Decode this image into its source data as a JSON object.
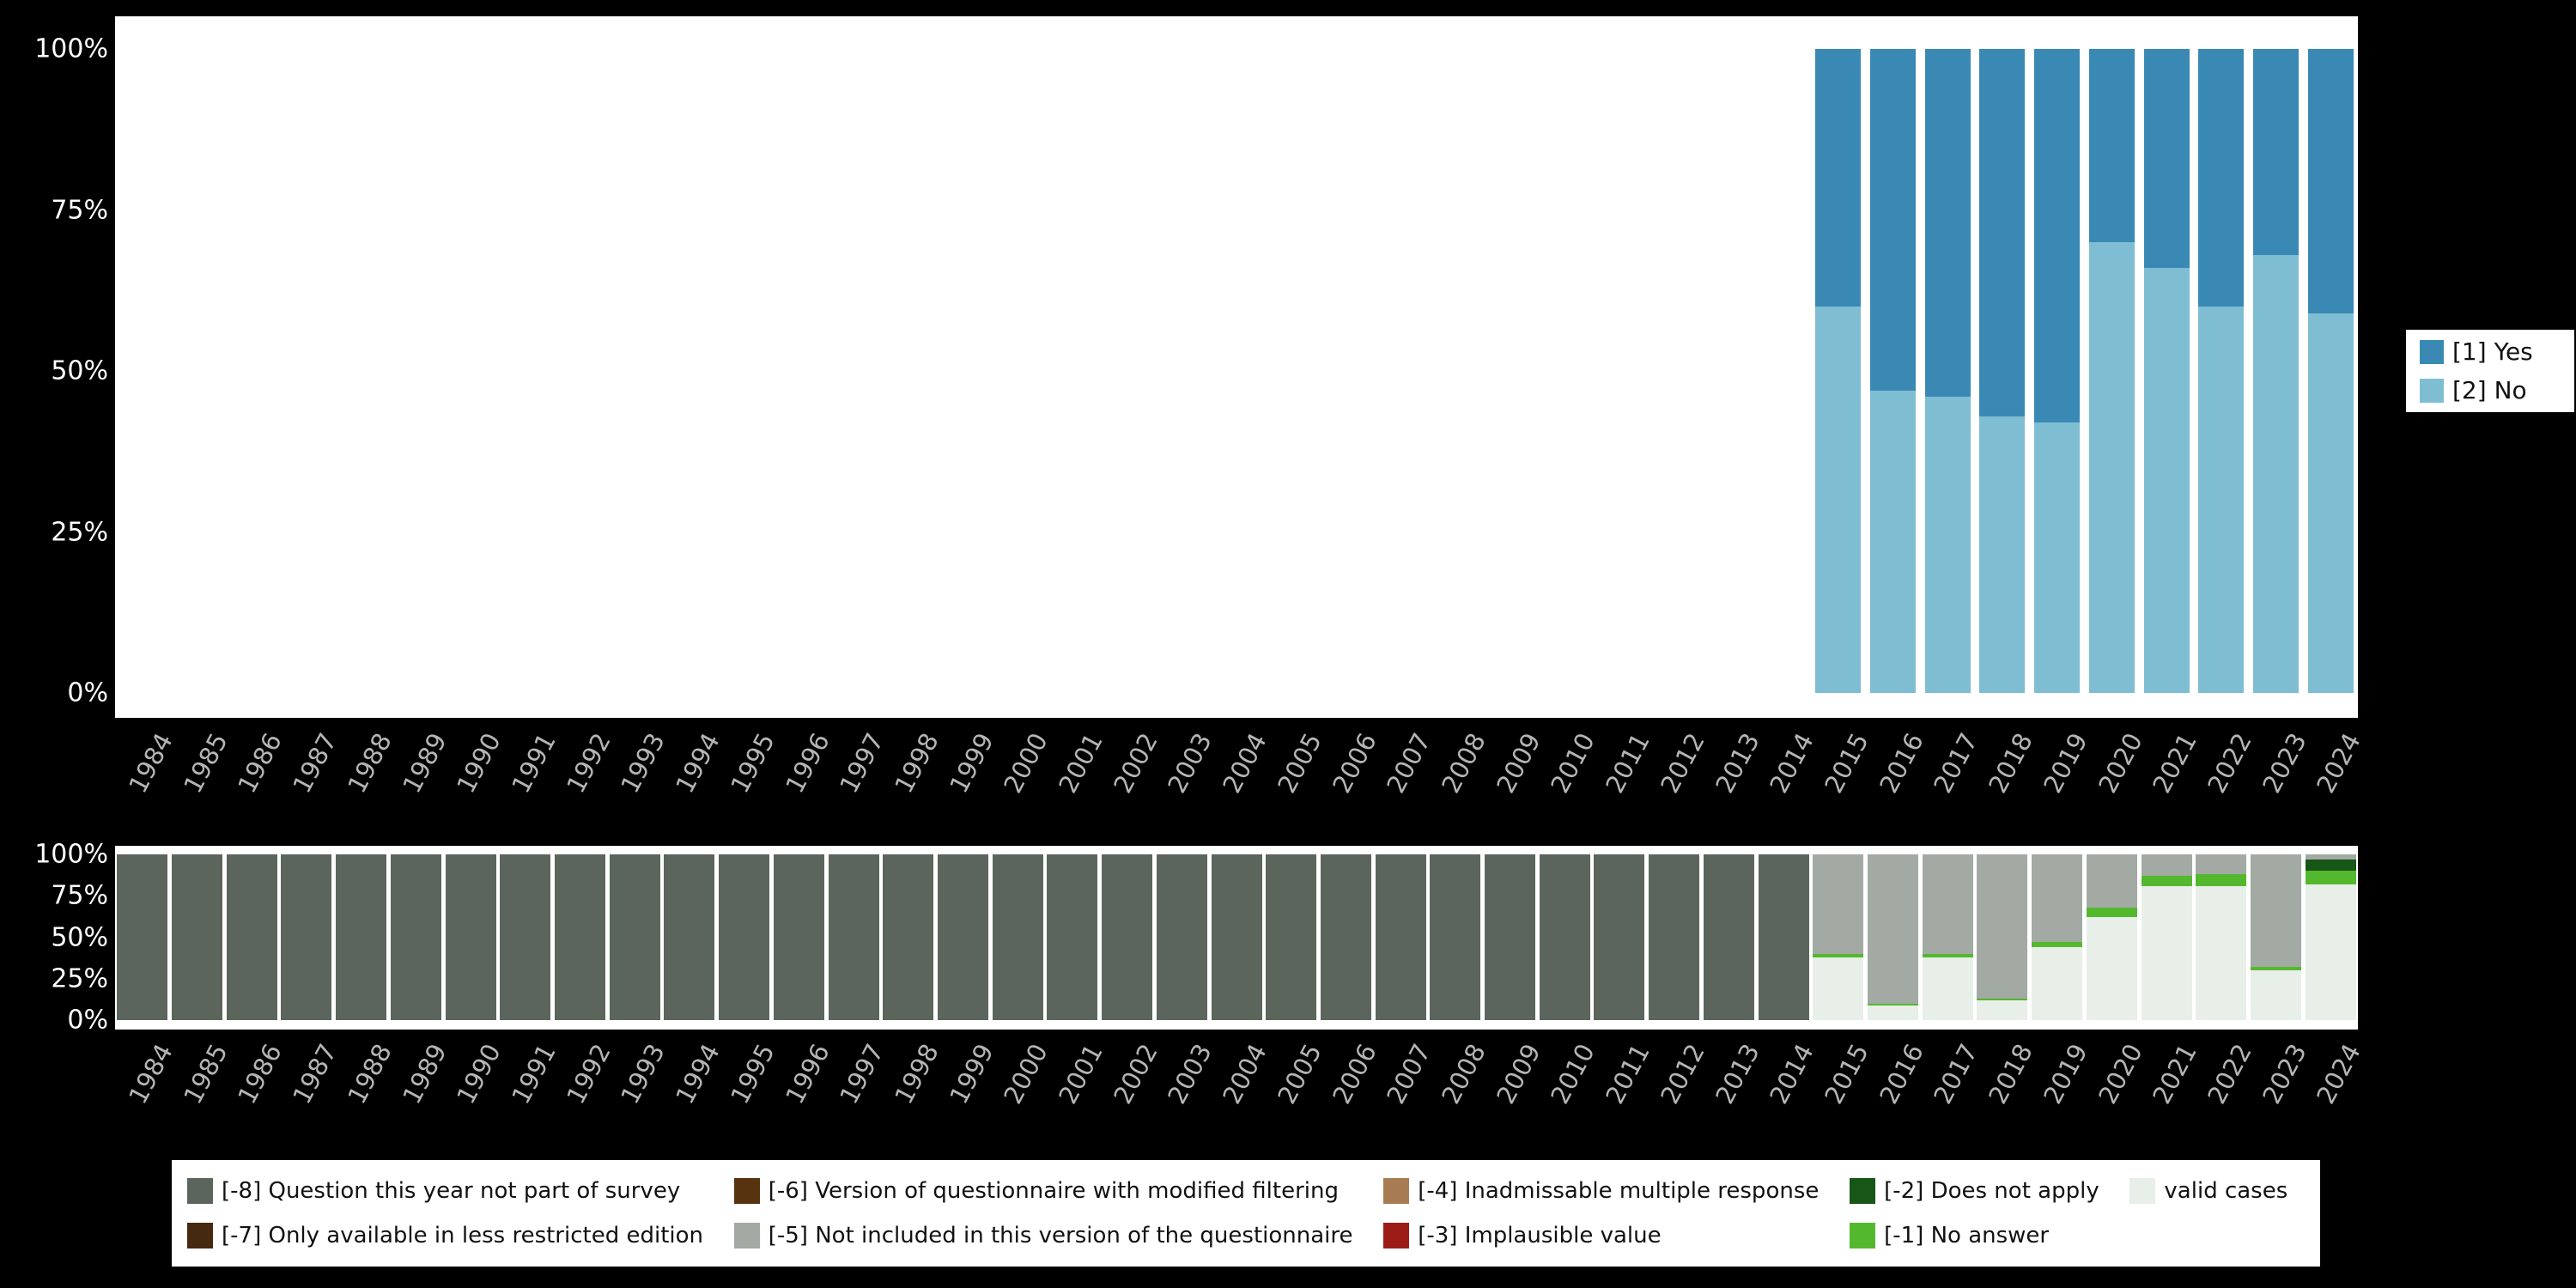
{
  "colors": {
    "page_background": "#000000",
    "panel_background": "#ffffff",
    "ytick_text": "#ffffff",
    "xtick_text": "#b5b5b5",
    "legend_background": "#ffffff",
    "legend_text": "#111111"
  },
  "chart_data": [
    {
      "name": "frequencies-by-year",
      "type": "bar",
      "stacked": true,
      "title": "",
      "xlabel": "",
      "ylabel": "",
      "grid": false,
      "legend_position": "right",
      "ylim": [
        0,
        100
      ],
      "ytick_values": [
        0,
        25,
        50,
        75,
        100
      ],
      "ytick_labels": [
        "0%",
        "25%",
        "50%",
        "75%",
        "100%"
      ],
      "x": [
        1984,
        1985,
        1986,
        1987,
        1988,
        1989,
        1990,
        1991,
        1992,
        1993,
        1994,
        1995,
        1996,
        1997,
        1998,
        1999,
        2000,
        2001,
        2002,
        2003,
        2004,
        2005,
        2006,
        2007,
        2008,
        2009,
        2010,
        2011,
        2012,
        2013,
        2014,
        2015,
        2016,
        2017,
        2018,
        2019,
        2020,
        2021,
        2022,
        2023,
        2024
      ],
      "series": [
        {
          "name": "[1] Yes",
          "color": "#3a89b4",
          "values": [
            0,
            0,
            0,
            0,
            0,
            0,
            0,
            0,
            0,
            0,
            0,
            0,
            0,
            0,
            0,
            0,
            0,
            0,
            0,
            0,
            0,
            0,
            0,
            0,
            0,
            0,
            0,
            0,
            0,
            0,
            0,
            40,
            53,
            54,
            57,
            58,
            30,
            34,
            40,
            32,
            41
          ]
        },
        {
          "name": "[2] No",
          "color": "#7fbdd3",
          "values": [
            0,
            0,
            0,
            0,
            0,
            0,
            0,
            0,
            0,
            0,
            0,
            0,
            0,
            0,
            0,
            0,
            0,
            0,
            0,
            0,
            0,
            0,
            0,
            0,
            0,
            0,
            0,
            0,
            0,
            0,
            0,
            60,
            47,
            46,
            43,
            42,
            70,
            66,
            60,
            68,
            59
          ]
        }
      ]
    },
    {
      "name": "missing-values-by-year",
      "type": "bar",
      "stacked": true,
      "title": "",
      "xlabel": "",
      "ylabel": "",
      "grid": false,
      "legend_position": "bottom",
      "ylim": [
        0,
        100
      ],
      "ytick_values": [
        0,
        25,
        50,
        75,
        100
      ],
      "ytick_labels": [
        "0%",
        "25%",
        "50%",
        "75%",
        "100%"
      ],
      "x": [
        1984,
        1985,
        1986,
        1987,
        1988,
        1989,
        1990,
        1991,
        1992,
        1993,
        1994,
        1995,
        1996,
        1997,
        1998,
        1999,
        2000,
        2001,
        2002,
        2003,
        2004,
        2005,
        2006,
        2007,
        2008,
        2009,
        2010,
        2011,
        2012,
        2013,
        2014,
        2015,
        2016,
        2017,
        2018,
        2019,
        2020,
        2021,
        2022,
        2023,
        2024
      ],
      "series": [
        {
          "name": "[-8] Question this year not part of survey",
          "color": "#5b655c",
          "values": [
            100,
            100,
            100,
            100,
            100,
            100,
            100,
            100,
            100,
            100,
            100,
            100,
            100,
            100,
            100,
            100,
            100,
            100,
            100,
            100,
            100,
            100,
            100,
            100,
            100,
            100,
            100,
            100,
            100,
            100,
            100,
            0,
            0,
            0,
            0,
            0,
            0,
            0,
            0,
            0,
            0
          ]
        },
        {
          "name": "[-7] Only available in less restricted edition",
          "color": "#452a10",
          "values": [
            0,
            0,
            0,
            0,
            0,
            0,
            0,
            0,
            0,
            0,
            0,
            0,
            0,
            0,
            0,
            0,
            0,
            0,
            0,
            0,
            0,
            0,
            0,
            0,
            0,
            0,
            0,
            0,
            0,
            0,
            0,
            0,
            0,
            0,
            0,
            0,
            0,
            0,
            0,
            0,
            0
          ]
        },
        {
          "name": "[-6] Version of questionnaire with modified filtering",
          "color": "#58330f",
          "values": [
            0,
            0,
            0,
            0,
            0,
            0,
            0,
            0,
            0,
            0,
            0,
            0,
            0,
            0,
            0,
            0,
            0,
            0,
            0,
            0,
            0,
            0,
            0,
            0,
            0,
            0,
            0,
            0,
            0,
            0,
            0,
            0,
            0,
            0,
            0,
            0,
            0,
            0,
            0,
            0,
            0
          ]
        },
        {
          "name": "[-5] Not included in this version of the questionnaire",
          "color": "#a2aaa3",
          "values": [
            0,
            0,
            0,
            0,
            0,
            0,
            0,
            0,
            0,
            0,
            0,
            0,
            0,
            0,
            0,
            0,
            0,
            0,
            0,
            0,
            0,
            0,
            0,
            0,
            0,
            0,
            0,
            0,
            0,
            0,
            0,
            60,
            90,
            60,
            87,
            53,
            32,
            13,
            12,
            68,
            3
          ]
        },
        {
          "name": "[-4] Inadmissable multiple response",
          "color": "#a87c52",
          "values": [
            0,
            0,
            0,
            0,
            0,
            0,
            0,
            0,
            0,
            0,
            0,
            0,
            0,
            0,
            0,
            0,
            0,
            0,
            0,
            0,
            0,
            0,
            0,
            0,
            0,
            0,
            0,
            0,
            0,
            0,
            0,
            0,
            0,
            0,
            0,
            0,
            0,
            0,
            0,
            0,
            0
          ]
        },
        {
          "name": "[-3] Implausible value",
          "color": "#9b1b16",
          "values": [
            0,
            0,
            0,
            0,
            0,
            0,
            0,
            0,
            0,
            0,
            0,
            0,
            0,
            0,
            0,
            0,
            0,
            0,
            0,
            0,
            0,
            0,
            0,
            0,
            0,
            0,
            0,
            0,
            0,
            0,
            0,
            0,
            0,
            0,
            0,
            0,
            0,
            0,
            0,
            0,
            0
          ]
        },
        {
          "name": "[-2] Does not apply",
          "color": "#175617",
          "values": [
            0,
            0,
            0,
            0,
            0,
            0,
            0,
            0,
            0,
            0,
            0,
            0,
            0,
            0,
            0,
            0,
            0,
            0,
            0,
            0,
            0,
            0,
            0,
            0,
            0,
            0,
            0,
            0,
            0,
            0,
            0,
            0,
            0,
            0,
            0,
            0,
            0,
            0,
            0,
            0,
            7
          ]
        },
        {
          "name": "[-1] No answer",
          "color": "#54b82f",
          "values": [
            0,
            0,
            0,
            0,
            0,
            0,
            0,
            0,
            0,
            0,
            0,
            0,
            0,
            0,
            0,
            0,
            0,
            0,
            0,
            0,
            0,
            0,
            0,
            0,
            0,
            0,
            0,
            0,
            0,
            0,
            0,
            2,
            1,
            2,
            1,
            3,
            6,
            6,
            7,
            2,
            8
          ]
        },
        {
          "name": "valid cases",
          "color": "#e8eee8",
          "values": [
            0,
            0,
            0,
            0,
            0,
            0,
            0,
            0,
            0,
            0,
            0,
            0,
            0,
            0,
            0,
            0,
            0,
            0,
            0,
            0,
            0,
            0,
            0,
            0,
            0,
            0,
            0,
            0,
            0,
            0,
            0,
            38,
            9,
            38,
            12,
            44,
            62,
            81,
            81,
            30,
            82
          ]
        }
      ]
    }
  ]
}
